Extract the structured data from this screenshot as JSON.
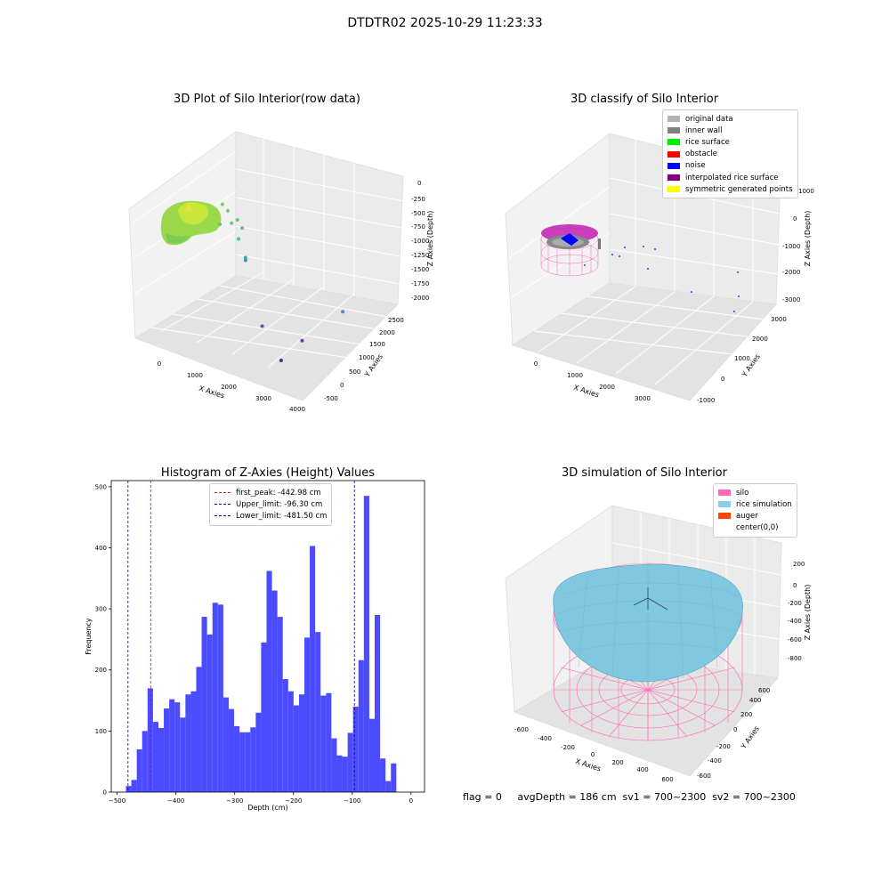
{
  "suptitle": "DTDTR02 2025-10-29 11:23:33",
  "footer": "flag = 0     avgDepth = 186 cm  sv1 = 700~2300  sv2 = 700~2300",
  "chart_data": [
    {
      "type": "scatter",
      "title": "3D Plot of Silo Interior(row data)",
      "xlabel": "X Axies",
      "ylabel": "Y Axies",
      "zlabel": "Z Axies (Depth)",
      "x_ticks": [
        "0",
        "1000",
        "2000",
        "3000",
        "4000"
      ],
      "y_ticks": [
        "-500",
        "0",
        "500",
        "1000",
        "1500",
        "2000",
        "2500"
      ],
      "z_ticks": [
        "0",
        "-250",
        "-500",
        "-750",
        "-1000",
        "-1250",
        "-1500",
        "-1750",
        "-2000"
      ],
      "points": [
        {
          "x": 500,
          "y": 1100,
          "z": -420,
          "color": "#7ccd5a"
        },
        {
          "x": 700,
          "y": 1050,
          "z": -470,
          "color": "#6fcf6a"
        },
        {
          "x": 850,
          "y": 1000,
          "z": -620,
          "color": "#6acb70"
        },
        {
          "x": 1100,
          "y": 900,
          "z": -500,
          "color": "#5ec97a"
        },
        {
          "x": 1200,
          "y": 950,
          "z": -620,
          "color": "#58c47e"
        },
        {
          "x": 300,
          "y": 1250,
          "z": -800,
          "color": "#5ec46a"
        },
        {
          "x": 1300,
          "y": 700,
          "z": -700,
          "color": "#52c08a"
        },
        {
          "x": 1500,
          "y": 700,
          "z": -950,
          "color": "#3fa5a8"
        },
        {
          "x": 1520,
          "y": 680,
          "z": -980,
          "color": "#3b98ad"
        },
        {
          "x": 3600,
          "y": 1600,
          "z": -1650,
          "color": "#5a86c0"
        },
        {
          "x": 2400,
          "y": 200,
          "z": -1700,
          "color": "#6a4ea0"
        },
        {
          "x": 3400,
          "y": 400,
          "z": -1800,
          "color": "#6b3f96"
        },
        {
          "x": 3200,
          "y": -100,
          "z": -2000,
          "color": "#5a2a80"
        }
      ]
    },
    {
      "type": "scatter",
      "title": "3D classify of Silo Interior",
      "xlabel": "X Axies",
      "ylabel": "Y Axies",
      "zlabel": "Z Axies (Depth)",
      "x_ticks": [
        "0",
        "1000",
        "2000",
        "3000"
      ],
      "y_ticks": [
        "-1000",
        "0",
        "1000",
        "2000",
        "3000"
      ],
      "z_ticks": [
        "1000",
        "0",
        "-1000",
        "-2000",
        "-3000"
      ],
      "legend": [
        {
          "label": "original data",
          "color": "#b2b2b2"
        },
        {
          "label": "inner wall",
          "color": "#808080"
        },
        {
          "label": "rice surface",
          "color": "#00ee00"
        },
        {
          "label": "obstacle",
          "color": "#ff0000"
        },
        {
          "label": "noise",
          "color": "#0000ff"
        },
        {
          "label": "interpolated rice surface",
          "color": "#800080"
        },
        {
          "label": "symmetric generated points",
          "color": "#ffff00"
        }
      ]
    },
    {
      "type": "bar",
      "title": "Histogram of Z-Axies (Height) Values",
      "xlabel": "Depth (cm)",
      "ylabel": "Frequency",
      "xlim": [
        -510,
        23
      ],
      "ylim": [
        0,
        510
      ],
      "bin_start": -485,
      "bin_width": 9.2,
      "values": [
        10,
        20,
        70,
        100,
        170,
        115,
        105,
        137,
        152,
        147,
        122,
        160,
        165,
        205,
        287,
        258,
        310,
        307,
        155,
        136,
        108,
        98,
        98,
        106,
        130,
        245,
        362,
        330,
        287,
        185,
        165,
        142,
        160,
        253,
        403,
        262,
        158,
        162,
        88,
        60,
        58,
        97,
        140,
        216,
        485,
        120,
        290,
        55,
        18,
        47
      ],
      "x_ticks": [
        -500,
        -400,
        -300,
        -200,
        -100,
        0
      ],
      "y_ticks": [
        0,
        100,
        200,
        300,
        400,
        500
      ],
      "lines": [
        {
          "value": -442.98,
          "label": "first_peak: -442.98 cm",
          "color": "#ff0000"
        },
        {
          "value": -96.3,
          "label": "Upper_limit: -96.30 cm",
          "color": "#0000aa"
        },
        {
          "value": -481.5,
          "label": "Lower_limit: -481.50 cm",
          "color": "#0000aa"
        }
      ],
      "bar_color": "#4b4bff"
    },
    {
      "type": "surface",
      "title": "3D simulation of Silo Interior",
      "xlabel": "X Axies",
      "ylabel": "Y Axies",
      "zlabel": "Z Axies (Depth)",
      "x_ticks": [
        "-600",
        "-400",
        "-200",
        "0",
        "200",
        "400",
        "600"
      ],
      "y_ticks": [
        "-600",
        "-400",
        "-200",
        "0",
        "200",
        "400",
        "600"
      ],
      "z_ticks": [
        "200",
        "0",
        "-200",
        "-400",
        "-600",
        "-800"
      ],
      "legend": [
        {
          "label": "silo",
          "color": "#ff69b4"
        },
        {
          "label": "rice simulation",
          "color": "#87ceeb"
        },
        {
          "label": "auger",
          "color": "#ff4500"
        },
        {
          "label": "center(0,0)",
          "color": "#ffffff"
        }
      ]
    }
  ]
}
